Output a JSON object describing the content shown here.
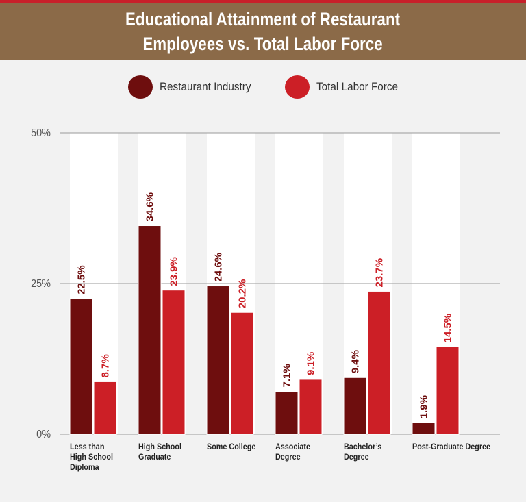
{
  "title_lines": [
    "Educational Attainment of Restaurant",
    "Employees vs. Total Labor Force"
  ],
  "legend": [
    {
      "label": "Restaurant Industry",
      "color": "#6e0e0e"
    },
    {
      "label": "Total Labor Force",
      "color": "#cc1f26"
    }
  ],
  "chart_data": {
    "type": "bar",
    "title": "Educational Attainment of Restaurant Employees vs. Total Labor Force",
    "categories": [
      [
        "Less than",
        "High School",
        "Diploma"
      ],
      [
        "High School",
        "Graduate"
      ],
      [
        "Some College"
      ],
      [
        "Associate",
        "Degree"
      ],
      [
        "Bachelor’s",
        "Degree"
      ],
      [
        "Post-Graduate Degree"
      ]
    ],
    "series": [
      {
        "name": "Restaurant Industry",
        "values": [
          22.5,
          34.6,
          24.6,
          7.1,
          9.4,
          1.9
        ],
        "labels": [
          "22.5%",
          "34.6%",
          "24.6%",
          "7.1%",
          "9.4%",
          "1.9%"
        ],
        "color": "#6e0e0e"
      },
      {
        "name": "Total Labor Force",
        "values": [
          8.7,
          23.9,
          20.2,
          9.1,
          23.7,
          14.5
        ],
        "labels": [
          "8.7%",
          "23.9%",
          "20.2%",
          "9.1%",
          "23.7%",
          "14.5%"
        ],
        "color": "#cc1f26"
      }
    ],
    "y_ticks": [
      {
        "value": 0,
        "label": "0%"
      },
      {
        "value": 25,
        "label": "25%"
      },
      {
        "value": 50,
        "label": "50%"
      }
    ],
    "ylim": [
      0,
      50
    ],
    "grid": true,
    "legend_position": "top-center"
  }
}
